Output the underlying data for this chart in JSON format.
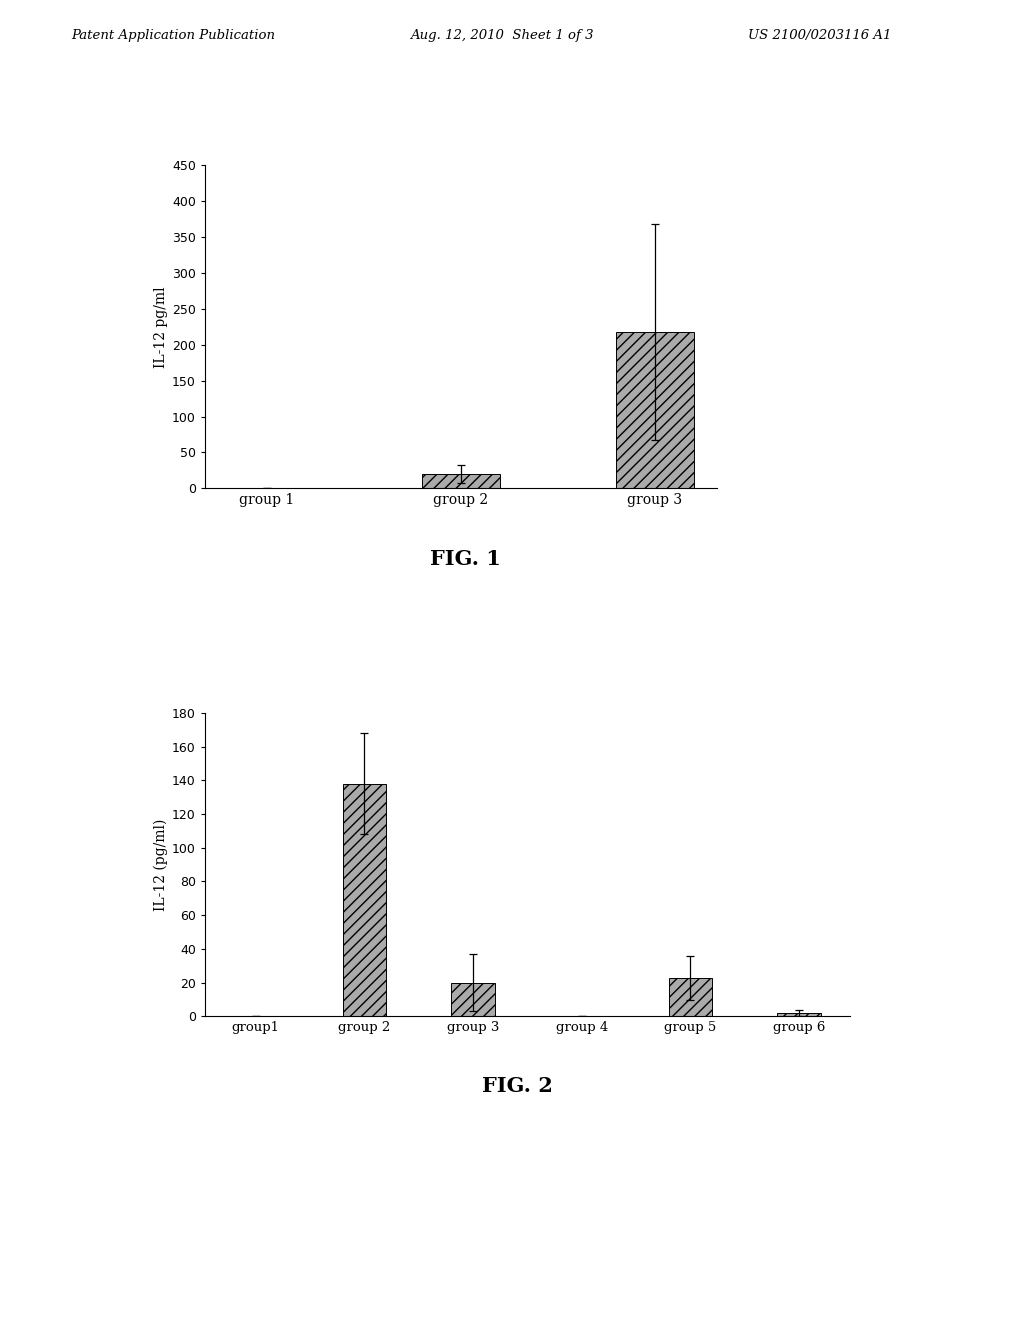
{
  "fig1": {
    "categories": [
      "group 1",
      "group 2",
      "group 3"
    ],
    "values": [
      0,
      20,
      218
    ],
    "errors": [
      0,
      12,
      150
    ],
    "ylabel": "IL-12 pg/ml",
    "ylim": [
      0,
      450
    ],
    "yticks": [
      0,
      50,
      100,
      150,
      200,
      250,
      300,
      350,
      400,
      450
    ],
    "title": "FIG. 1",
    "bar_color": "#aaaaaa",
    "hatch": "///",
    "bar_width": 0.4
  },
  "fig2": {
    "categories": [
      "group1",
      "group 2",
      "group 3",
      "group 4",
      "group 5",
      "group 6"
    ],
    "values": [
      0,
      138,
      20,
      0,
      23,
      2
    ],
    "errors": [
      0,
      30,
      17,
      0,
      13,
      2
    ],
    "ylabel": "IL-12 (pg/ml)",
    "ylim": [
      0,
      180
    ],
    "yticks": [
      0,
      20,
      40,
      60,
      80,
      100,
      120,
      140,
      160,
      180
    ],
    "title": "FIG. 2",
    "bar_color": "#aaaaaa",
    "hatch": "///",
    "bar_width": 0.4
  },
  "header_left": "Patent Application Publication",
  "header_mid": "Aug. 12, 2010  Sheet 1 of 3",
  "header_right": "US 2100/0203116 A1",
  "bg_color": "#ffffff",
  "text_color": "#000000"
}
